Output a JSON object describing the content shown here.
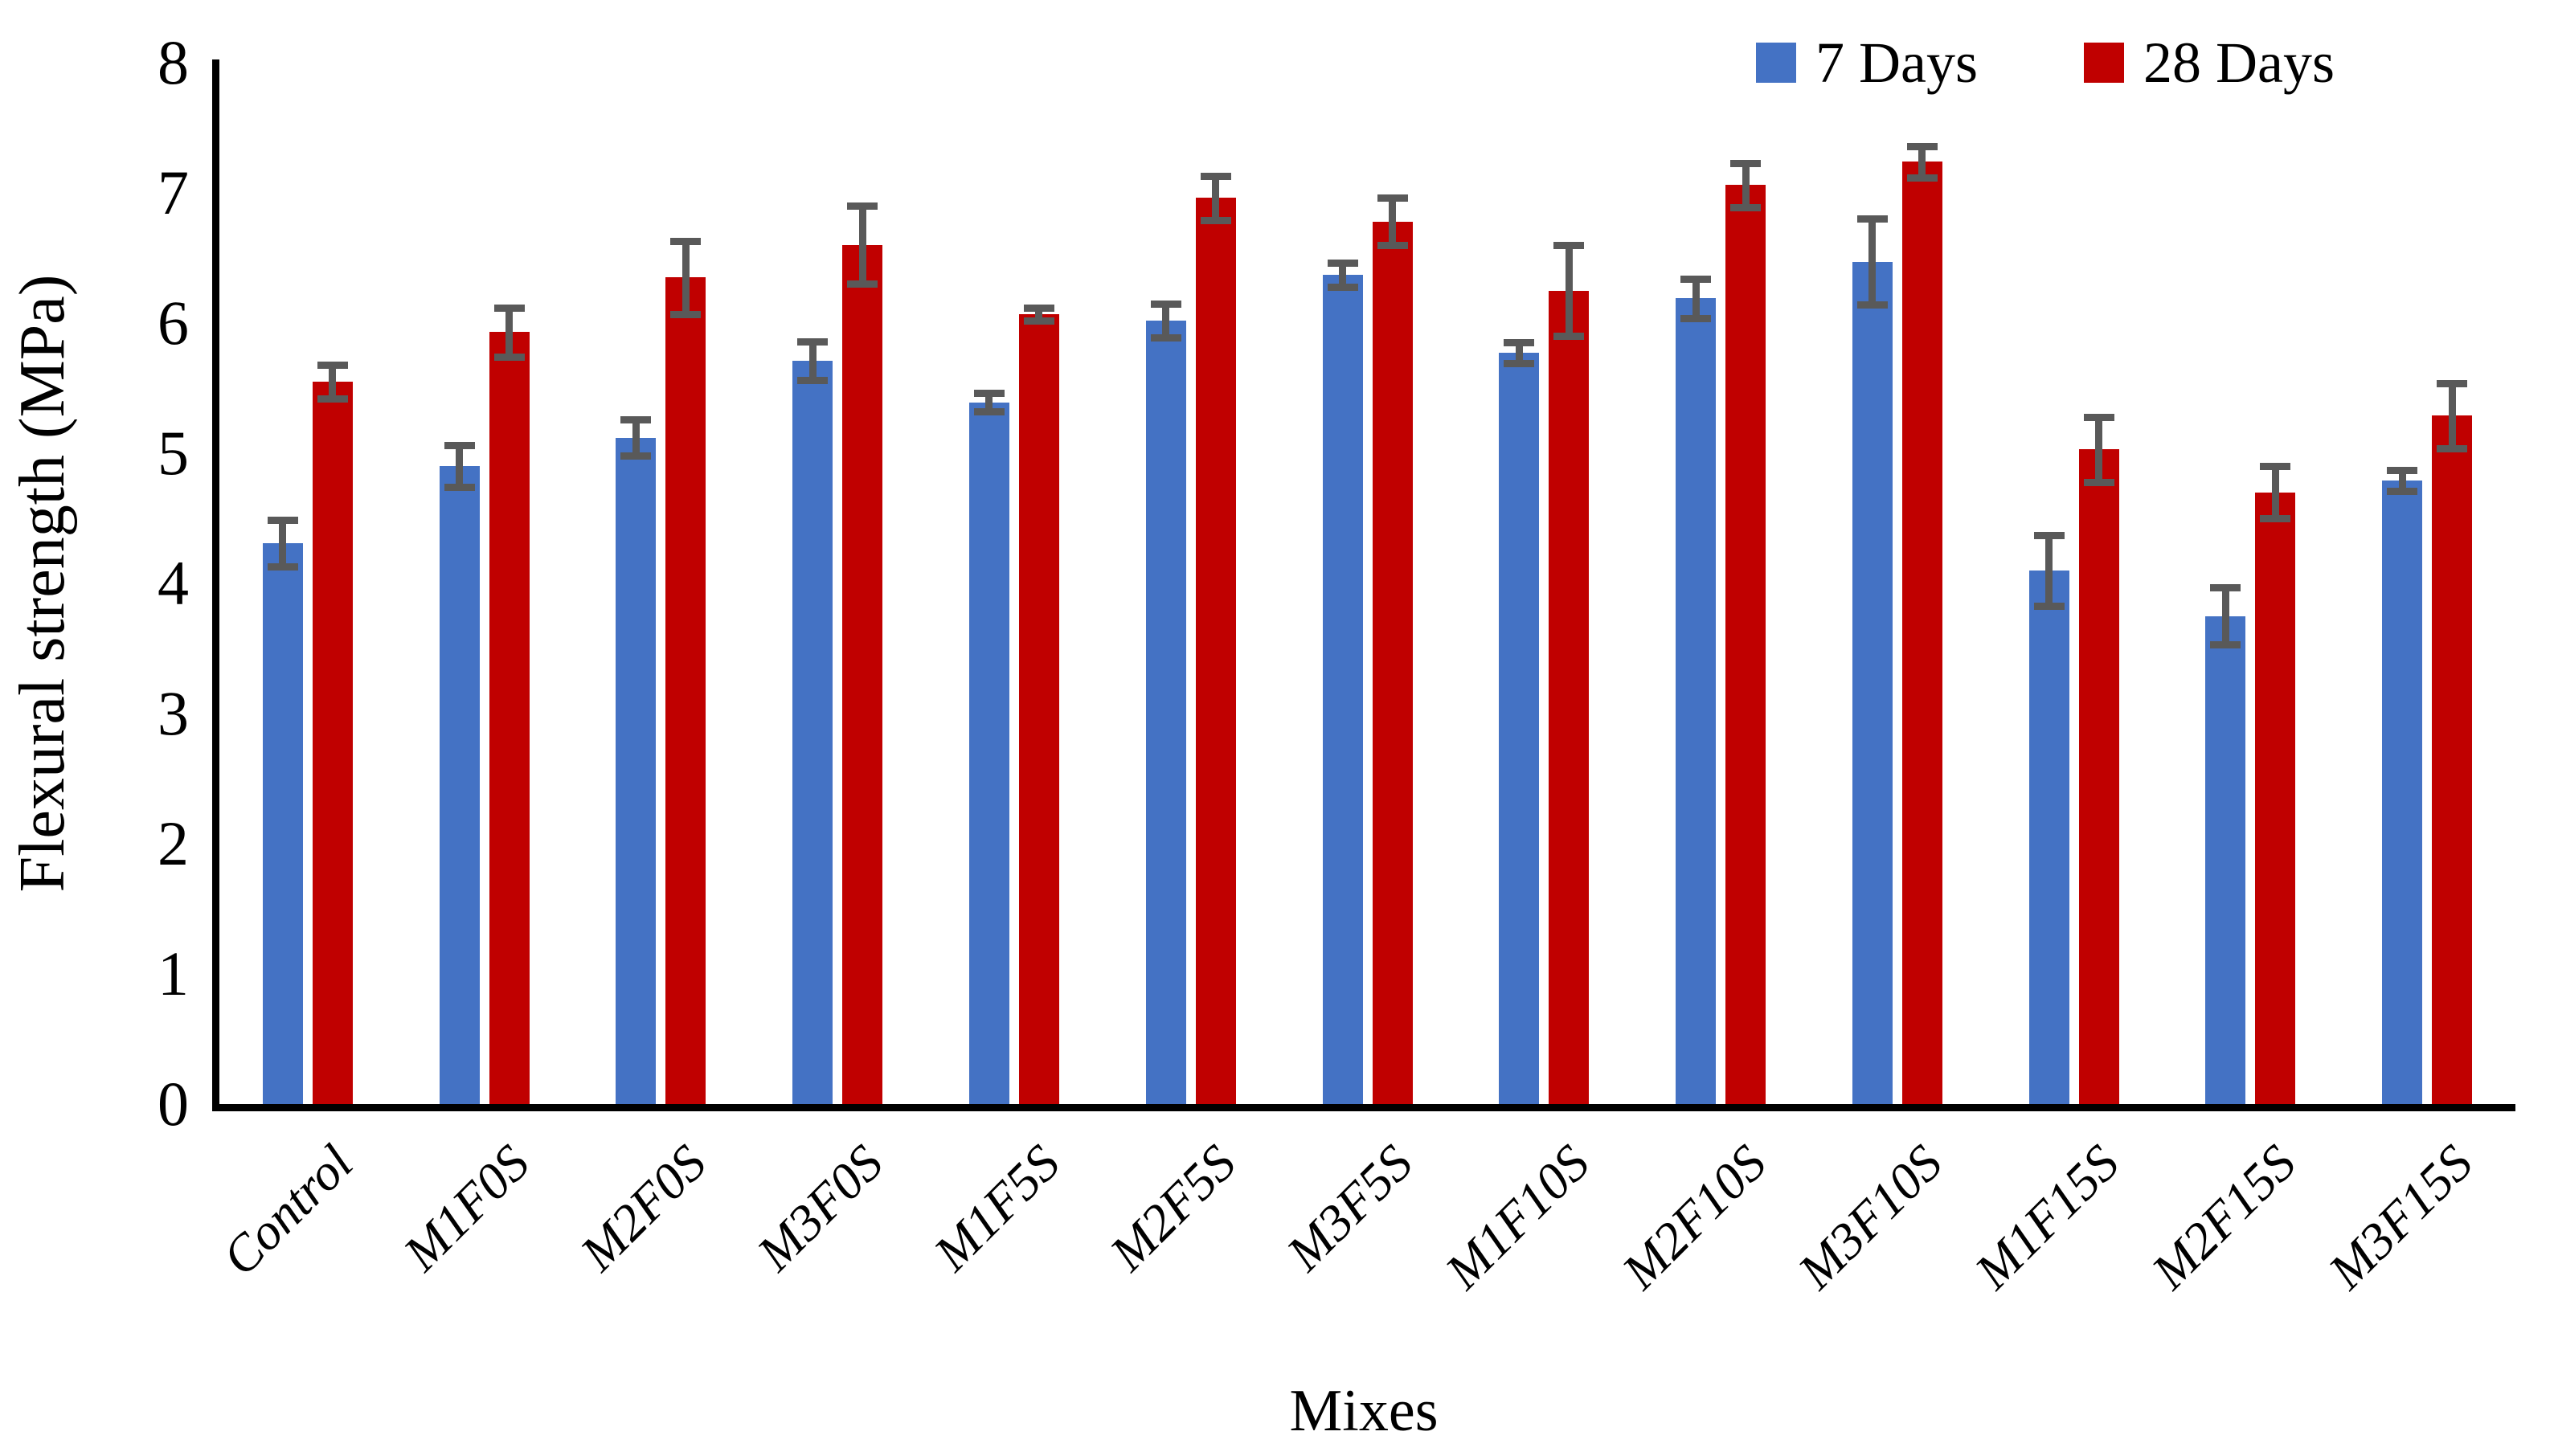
{
  "figure": {
    "background": "#ffffff"
  },
  "chart_data": {
    "type": "bar",
    "title": "",
    "xlabel": "Mixes",
    "ylabel": "Flexural strength (MPa)",
    "ylim": [
      0,
      8
    ],
    "yticks": [
      "0",
      "1",
      "2",
      "3",
      "4",
      "5",
      "6",
      "7",
      "8"
    ],
    "grid": false,
    "legend_position": "top-right",
    "bar_colors": {
      "7 Days": "#4472C4",
      "28 Days": "#C00000"
    },
    "error_bar_color": "#595959",
    "axis_color": "#000000",
    "categories": [
      "Control",
      "M1F0S",
      "M2F0S",
      "M3F0S",
      "M1F5S",
      "M2F5S",
      "M3F5S",
      "M1F10S",
      "M2F10S",
      "M3F10S",
      "M1F15S",
      "M2F15S",
      "M3F15S"
    ],
    "series": [
      {
        "name": "7 Days",
        "color": "#4472C4",
        "values": [
          4.31,
          4.9,
          5.12,
          5.71,
          5.39,
          6.02,
          6.37,
          5.77,
          6.19,
          6.47,
          4.1,
          3.75,
          4.79
        ],
        "errors": [
          0.18,
          0.16,
          0.14,
          0.15,
          0.07,
          0.13,
          0.09,
          0.08,
          0.15,
          0.33,
          0.27,
          0.22,
          0.08
        ]
      },
      {
        "name": "28 Days",
        "color": "#C00000",
        "values": [
          5.55,
          5.93,
          6.35,
          6.6,
          6.07,
          6.96,
          6.78,
          6.25,
          7.06,
          7.24,
          5.03,
          4.7,
          5.29
        ],
        "errors": [
          0.13,
          0.19,
          0.28,
          0.3,
          0.05,
          0.17,
          0.18,
          0.35,
          0.17,
          0.12,
          0.25,
          0.2,
          0.25
        ]
      }
    ]
  }
}
